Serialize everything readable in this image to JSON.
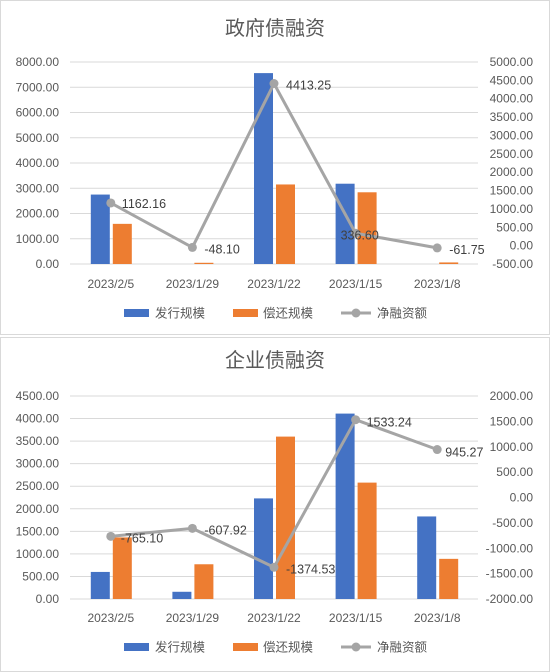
{
  "chart_data": [
    {
      "type": "bar",
      "title": "政府债融资",
      "categories": [
        "2023/2/5",
        "2023/1/29",
        "2023/1/22",
        "2023/1/15",
        "2023/1/8"
      ],
      "series": [
        {
          "name": "发行规模",
          "type": "bar",
          "axis": "left",
          "color": "#4472C4",
          "values": [
            2750,
            0,
            7560,
            3180,
            0
          ]
        },
        {
          "name": "偿还规模",
          "type": "bar",
          "axis": "left",
          "color": "#ED7D31",
          "values": [
            1590,
            48,
            3150,
            2840,
            62
          ]
        },
        {
          "name": "净融资额",
          "type": "line",
          "axis": "right",
          "color": "#A5A5A5",
          "values": [
            1162.16,
            -48.1,
            4413.25,
            336.6,
            -61.75
          ],
          "data_labels": [
            "1162.16",
            "-48.10",
            "4413.25",
            "336.60",
            "-61.75"
          ]
        }
      ],
      "ylim": [
        0,
        8000
      ],
      "y2lim": [
        -500,
        5000
      ],
      "y_ticks": [
        "0.00",
        "1000.00",
        "2000.00",
        "3000.00",
        "4000.00",
        "5000.00",
        "6000.00",
        "7000.00",
        "8000.00"
      ],
      "y2_ticks": [
        "-500.00",
        "0.00",
        "500.00",
        "1000.00",
        "1500.00",
        "2000.00",
        "2500.00",
        "3000.00",
        "3500.00",
        "4000.00",
        "4500.00",
        "5000.00"
      ],
      "grid": true,
      "legend": "bottom"
    },
    {
      "type": "bar",
      "title": "企业债融资",
      "categories": [
        "2023/2/5",
        "2023/1/29",
        "2023/1/22",
        "2023/1/15",
        "2023/1/8"
      ],
      "series": [
        {
          "name": "发行规模",
          "type": "bar",
          "axis": "left",
          "color": "#4472C4",
          "values": [
            600,
            160,
            2230,
            4110,
            1830
          ]
        },
        {
          "name": "偿还规模",
          "type": "bar",
          "axis": "left",
          "color": "#ED7D31",
          "values": [
            1365,
            770,
            3600,
            2580,
            890
          ]
        },
        {
          "name": "净融资额",
          "type": "line",
          "axis": "right",
          "color": "#A5A5A5",
          "values": [
            -765.1,
            -607.92,
            -1374.53,
            1533.24,
            945.27
          ],
          "data_labels": [
            "-765.10",
            "-607.92",
            "-1374.53",
            "1533.24",
            "945.27"
          ]
        }
      ],
      "ylim": [
        0,
        4500
      ],
      "y2lim": [
        -2000,
        2000
      ],
      "y_ticks": [
        "0.00",
        "500.00",
        "1000.00",
        "1500.00",
        "2000.00",
        "2500.00",
        "3000.00",
        "3500.00",
        "4000.00",
        "4500.00"
      ],
      "y2_ticks": [
        "-2000.00",
        "-1500.00",
        "-1000.00",
        "-500.00",
        "0.00",
        "500.00",
        "1000.00",
        "1500.00",
        "2000.00"
      ],
      "grid": true,
      "legend": "bottom"
    }
  ]
}
